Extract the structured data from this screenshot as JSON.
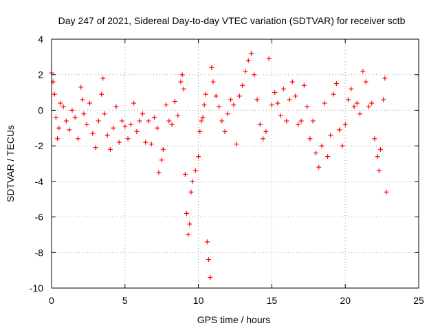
{
  "chart_data": {
    "type": "scatter",
    "title": "Day 247 of 2021, Sidereal Day-to-day VTEC variation (SDTVAR) for receiver sctb",
    "xlabel": "GPS time / hours",
    "ylabel": "SDTVAR / TECUs",
    "xlim": [
      0,
      25
    ],
    "ylim": [
      -10,
      4
    ],
    "xticks": [
      0,
      5,
      10,
      15,
      20,
      25
    ],
    "yticks": [
      -10,
      -8,
      -6,
      -4,
      -2,
      0,
      2,
      4
    ],
    "xtick_labels": [
      "0",
      "5",
      "10",
      "15",
      "20",
      "25"
    ],
    "ytick_labels": [
      "-10",
      "-8",
      "-6",
      "-4",
      "-2",
      "0",
      "2",
      "4"
    ],
    "grid": true,
    "marker": "+",
    "series_color": "#ff0000",
    "series": [
      {
        "name": "SDTVAR",
        "points": [
          [
            0.0,
            2.1
          ],
          [
            0.1,
            1.6
          ],
          [
            0.2,
            0.9
          ],
          [
            0.3,
            -0.4
          ],
          [
            0.4,
            -1.6
          ],
          [
            0.5,
            -1.0
          ],
          [
            0.6,
            0.4
          ],
          [
            0.8,
            0.2
          ],
          [
            1.0,
            -0.6
          ],
          [
            1.2,
            -1.1
          ],
          [
            1.4,
            0.0
          ],
          [
            1.6,
            -0.4
          ],
          [
            1.8,
            -1.6
          ],
          [
            2.0,
            1.3
          ],
          [
            2.1,
            0.6
          ],
          [
            2.2,
            -0.2
          ],
          [
            2.4,
            -0.8
          ],
          [
            2.6,
            0.4
          ],
          [
            2.8,
            -1.3
          ],
          [
            3.0,
            -2.1
          ],
          [
            3.2,
            -0.6
          ],
          [
            3.4,
            0.9
          ],
          [
            3.5,
            1.8
          ],
          [
            3.6,
            -0.2
          ],
          [
            3.8,
            -1.4
          ],
          [
            4.0,
            -2.2
          ],
          [
            4.2,
            -1.0
          ],
          [
            4.4,
            0.2
          ],
          [
            4.6,
            -1.8
          ],
          [
            4.8,
            -0.6
          ],
          [
            5.0,
            -0.9
          ],
          [
            5.2,
            -1.6
          ],
          [
            5.4,
            -0.8
          ],
          [
            5.6,
            0.4
          ],
          [
            5.8,
            -1.2
          ],
          [
            6.0,
            -0.6
          ],
          [
            6.2,
            -0.2
          ],
          [
            6.4,
            -1.8
          ],
          [
            6.6,
            -0.6
          ],
          [
            6.8,
            -1.9
          ],
          [
            7.0,
            -0.4
          ],
          [
            7.2,
            -1.0
          ],
          [
            7.3,
            -3.5
          ],
          [
            7.5,
            -2.8
          ],
          [
            7.6,
            -2.2
          ],
          [
            7.8,
            0.3
          ],
          [
            8.0,
            -0.6
          ],
          [
            8.2,
            -0.8
          ],
          [
            8.4,
            0.5
          ],
          [
            8.6,
            -0.3
          ],
          [
            8.8,
            1.6
          ],
          [
            8.9,
            2.0
          ],
          [
            9.0,
            1.2
          ],
          [
            9.1,
            -3.6
          ],
          [
            9.2,
            -5.8
          ],
          [
            9.3,
            -7.0
          ],
          [
            9.4,
            -6.4
          ],
          [
            9.5,
            -4.6
          ],
          [
            9.6,
            -4.0
          ],
          [
            9.8,
            -3.4
          ],
          [
            10.0,
            -2.6
          ],
          [
            10.1,
            -1.2
          ],
          [
            10.2,
            -0.6
          ],
          [
            10.3,
            -0.4
          ],
          [
            10.4,
            0.3
          ],
          [
            10.5,
            0.9
          ],
          [
            10.6,
            -7.4
          ],
          [
            10.7,
            -8.4
          ],
          [
            10.8,
            -9.4
          ],
          [
            10.9,
            2.4
          ],
          [
            11.0,
            1.6
          ],
          [
            11.2,
            0.8
          ],
          [
            11.4,
            0.2
          ],
          [
            11.6,
            -0.6
          ],
          [
            11.8,
            -1.2
          ],
          [
            12.0,
            -0.2
          ],
          [
            12.2,
            0.6
          ],
          [
            12.4,
            0.3
          ],
          [
            12.6,
            -1.9
          ],
          [
            12.8,
            0.8
          ],
          [
            13.0,
            1.4
          ],
          [
            13.2,
            2.2
          ],
          [
            13.4,
            2.8
          ],
          [
            13.6,
            3.2
          ],
          [
            13.8,
            2.0
          ],
          [
            14.0,
            0.6
          ],
          [
            14.2,
            -0.8
          ],
          [
            14.4,
            -1.6
          ],
          [
            14.6,
            -1.2
          ],
          [
            14.8,
            2.9
          ],
          [
            15.0,
            0.3
          ],
          [
            15.2,
            1.0
          ],
          [
            15.4,
            0.4
          ],
          [
            15.6,
            -0.3
          ],
          [
            15.8,
            1.2
          ],
          [
            16.0,
            -0.6
          ],
          [
            16.2,
            0.6
          ],
          [
            16.4,
            1.6
          ],
          [
            16.6,
            0.8
          ],
          [
            16.8,
            -0.8
          ],
          [
            17.0,
            -0.6
          ],
          [
            17.2,
            1.4
          ],
          [
            17.4,
            0.2
          ],
          [
            17.6,
            -1.6
          ],
          [
            17.8,
            -0.6
          ],
          [
            18.0,
            -2.4
          ],
          [
            18.2,
            -3.2
          ],
          [
            18.4,
            -2.0
          ],
          [
            18.6,
            0.4
          ],
          [
            18.8,
            -2.6
          ],
          [
            19.0,
            -1.4
          ],
          [
            19.2,
            0.9
          ],
          [
            19.4,
            1.5
          ],
          [
            19.6,
            -1.1
          ],
          [
            19.8,
            -2.0
          ],
          [
            20.0,
            -0.8
          ],
          [
            20.2,
            0.6
          ],
          [
            20.4,
            1.2
          ],
          [
            20.6,
            0.2
          ],
          [
            20.8,
            0.4
          ],
          [
            21.0,
            -0.2
          ],
          [
            21.2,
            2.2
          ],
          [
            21.4,
            1.6
          ],
          [
            21.6,
            0.2
          ],
          [
            21.8,
            0.4
          ],
          [
            22.0,
            -1.6
          ],
          [
            22.2,
            -2.6
          ],
          [
            22.3,
            -3.4
          ],
          [
            22.4,
            -2.2
          ],
          [
            22.6,
            0.6
          ],
          [
            22.7,
            1.8
          ],
          [
            22.8,
            -4.6
          ]
        ]
      }
    ]
  }
}
